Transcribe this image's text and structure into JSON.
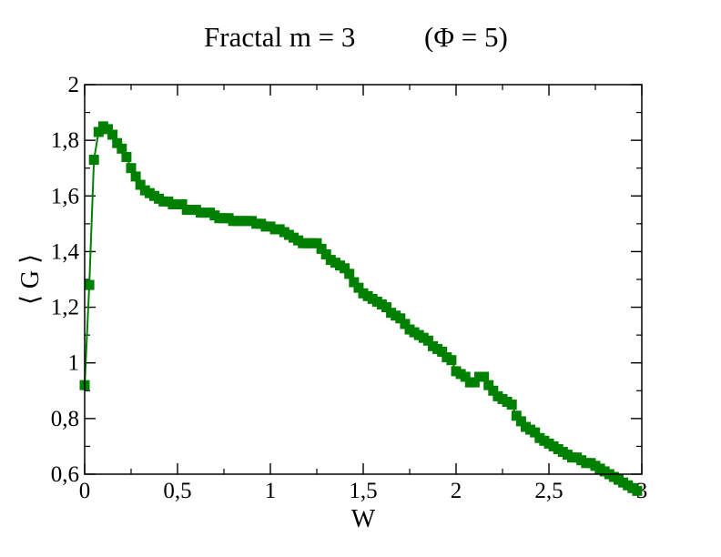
{
  "chart_data": {
    "type": "line",
    "title_left": "Fractal m = 3",
    "title_right": "(Φ = 5)",
    "xlabel": "W",
    "ylabel": "⟨ G ⟩",
    "xlim": [
      0,
      3
    ],
    "ylim": [
      0.6,
      2
    ],
    "x_ticks": [
      "0",
      "0,5",
      "1",
      "1,5",
      "2",
      "2,5",
      "3"
    ],
    "y_ticks": [
      "0,6",
      "0,8",
      "1",
      "1,2",
      "1,4",
      "1,6",
      "1,8",
      "2"
    ],
    "grid": false,
    "legend": "none",
    "series": [
      {
        "color": "#008000",
        "marker": "square",
        "x": [
          0,
          0.025,
          0.05,
          0.075,
          0.1,
          0.125,
          0.15,
          0.175,
          0.2,
          0.225,
          0.25,
          0.275,
          0.3,
          0.325,
          0.35,
          0.375,
          0.4,
          0.425,
          0.45,
          0.475,
          0.5,
          0.525,
          0.55,
          0.575,
          0.6,
          0.625,
          0.65,
          0.675,
          0.7,
          0.725,
          0.75,
          0.775,
          0.8,
          0.825,
          0.85,
          0.875,
          0.9,
          0.925,
          0.95,
          0.975,
          1,
          1.025,
          1.05,
          1.075,
          1.1,
          1.125,
          1.15,
          1.175,
          1.2,
          1.225,
          1.25,
          1.275,
          1.3,
          1.325,
          1.35,
          1.375,
          1.4,
          1.425,
          1.45,
          1.475,
          1.5,
          1.525,
          1.55,
          1.575,
          1.6,
          1.625,
          1.65,
          1.675,
          1.7,
          1.725,
          1.75,
          1.775,
          1.8,
          1.825,
          1.85,
          1.875,
          1.9,
          1.925,
          1.95,
          1.975,
          2,
          2.025,
          2.05,
          2.075,
          2.1,
          2.125,
          2.15,
          2.175,
          2.2,
          2.225,
          2.25,
          2.275,
          2.3,
          2.325,
          2.35,
          2.375,
          2.4,
          2.425,
          2.45,
          2.475,
          2.5,
          2.525,
          2.55,
          2.575,
          2.6,
          2.625,
          2.65,
          2.675,
          2.7,
          2.725,
          2.75,
          2.775,
          2.8,
          2.825,
          2.85,
          2.875,
          2.9,
          2.925,
          2.95,
          2.975
        ],
        "y": [
          0.92,
          1.28,
          1.73,
          1.83,
          1.85,
          1.84,
          1.82,
          1.79,
          1.77,
          1.74,
          1.7,
          1.67,
          1.64,
          1.62,
          1.61,
          1.6,
          1.59,
          1.58,
          1.58,
          1.57,
          1.57,
          1.57,
          1.55,
          1.55,
          1.55,
          1.54,
          1.54,
          1.54,
          1.53,
          1.52,
          1.52,
          1.52,
          1.51,
          1.51,
          1.51,
          1.51,
          1.51,
          1.5,
          1.5,
          1.49,
          1.49,
          1.48,
          1.48,
          1.47,
          1.46,
          1.45,
          1.44,
          1.43,
          1.43,
          1.43,
          1.43,
          1.41,
          1.39,
          1.37,
          1.36,
          1.35,
          1.34,
          1.32,
          1.29,
          1.27,
          1.25,
          1.24,
          1.23,
          1.22,
          1.21,
          1.2,
          1.18,
          1.17,
          1.16,
          1.14,
          1.12,
          1.11,
          1.1,
          1.09,
          1.08,
          1.06,
          1.05,
          1.04,
          1.02,
          1.01,
          0.97,
          0.96,
          0.95,
          0.93,
          0.93,
          0.95,
          0.95,
          0.92,
          0.9,
          0.88,
          0.87,
          0.86,
          0.85,
          0.81,
          0.79,
          0.77,
          0.76,
          0.75,
          0.73,
          0.72,
          0.71,
          0.7,
          0.69,
          0.68,
          0.67,
          0.66,
          0.66,
          0.65,
          0.64,
          0.64,
          0.63,
          0.62,
          0.61,
          0.6,
          0.59,
          0.58,
          0.57,
          0.56,
          0.55,
          0.54
        ]
      }
    ]
  }
}
